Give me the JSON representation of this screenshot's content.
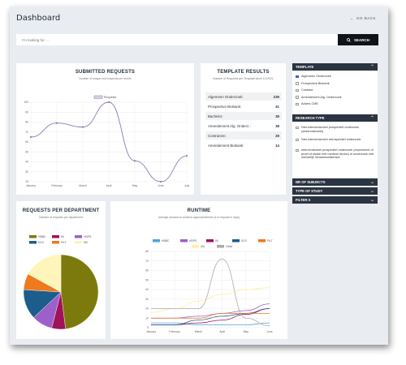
{
  "header": {
    "title": "Dashboard",
    "go_back": "GO BACK"
  },
  "search": {
    "placeholder": "I'm looking for ...",
    "button": "SEARCH"
  },
  "submitted": {
    "title": "SUBMITTED REQUESTS",
    "subtitle": "Number of unique new requests per month",
    "chart_data": {
      "type": "line",
      "categories": [
        "January",
        "February",
        "March",
        "April",
        "May",
        "June",
        "July"
      ],
      "series": [
        {
          "name": "Requests",
          "values": [
            65,
            79,
            75,
            100,
            41,
            20,
            46
          ]
        }
      ],
      "ylim": [
        20,
        100
      ],
      "yticks": [
        20,
        30,
        40,
        50,
        60,
        70,
        80,
        90,
        100
      ],
      "legend": "top",
      "colors": [
        "#8e79b4"
      ]
    }
  },
  "template_results": {
    "title": "TEMPLATE RESULTS",
    "subtitle": "Number of Requests per Template since 1/1/2021",
    "rows": [
      {
        "label": "Algemeen Onderzoek:",
        "value": "239"
      },
      {
        "label": "Prospective Biobank:",
        "value": "41"
      },
      {
        "label": "Bachelor:",
        "value": "39"
      },
      {
        "label": "Amendement Alg. Onderz.:",
        "value": "38"
      },
      {
        "label": "Contracten:",
        "value": "29"
      },
      {
        "label": "Amendement Biobank:",
        "value": "14"
      }
    ]
  },
  "department": {
    "title": "REQUESTS PER DEPARTMENT",
    "subtitle": "Number of requests per department",
    "chart_data": {
      "type": "pie",
      "categories": [
        "HBBC",
        "IIII",
        "HDPS",
        "DCV",
        "FILT",
        "IIIII"
      ],
      "values": [
        48,
        6,
        9,
        13,
        7,
        17
      ],
      "colors": [
        "#7c7a0c",
        "#a0125a",
        "#9d5fc9",
        "#1c5d8c",
        "#ed7a1c",
        "#fdf5b9"
      ],
      "legend": "top"
    }
  },
  "runtime": {
    "title": "RUNTIME",
    "subtitle": "Average duration to achieve approval/decline (# of request in days)",
    "chart_data": {
      "type": "line",
      "categories": [
        "January",
        "February",
        "March",
        "April",
        "May",
        "June"
      ],
      "ylim": [
        0,
        80
      ],
      "yticks": [
        0,
        10,
        20,
        30,
        40,
        50,
        60,
        70,
        80
      ],
      "legend": "top",
      "series": [
        {
          "name": "HBBC",
          "color": "#4fa3d9",
          "values": [
            5,
            5,
            3,
            3,
            3,
            5
          ]
        },
        {
          "name": "HDPS",
          "color": "#9d5fc9",
          "values": [
            10,
            10,
            12,
            15,
            18,
            25
          ]
        },
        {
          "name": "IIII",
          "color": "#a0125a",
          "values": [
            3,
            3,
            5,
            8,
            14,
            20
          ]
        },
        {
          "name": "DCV",
          "color": "#1c5d8c",
          "values": [
            3,
            3,
            8,
            12,
            15,
            20
          ]
        },
        {
          "name": "FILT",
          "color": "#ed7a1c",
          "values": [
            10,
            10,
            10,
            15,
            15,
            15
          ]
        },
        {
          "name": "IIIII",
          "color": "#fdf0a0",
          "values": [
            16,
            20,
            28,
            35,
            40,
            42
          ]
        },
        {
          "name": "Other",
          "color": "#aaaaaa",
          "values": [
            20,
            20,
            20,
            72,
            10,
            2
          ]
        }
      ]
    }
  },
  "sidebar": {
    "template": {
      "title": "TEMPLATE",
      "options": [
        {
          "label": "Algemeen Onderzoek",
          "checked": true
        },
        {
          "label": "Prospective Biobank",
          "checked": false
        },
        {
          "label": "Contract",
          "checked": false
        },
        {
          "label": "Amendement Alg. Onderzoek",
          "checked": false
        },
        {
          "label": "Advies CME",
          "checked": false
        }
      ]
    },
    "research_type": {
      "title": "RESEARCH TYPE",
      "options": [
        {
          "label": "Niet-interventioneel prospectief onderzoek (observationeel)"
        },
        {
          "label": "Niet-interventioneel retrospectief onderzoek"
        },
        {
          "label": "Interventioneel prospectief onderzoek (experiment of proef of studie met medical device) of onderzoek met menselijk lichaamsmateriaal"
        }
      ]
    },
    "nr_subjects": {
      "title": "NR OF SUBJECTS"
    },
    "type_of_study": {
      "title": "TYPE OF STUDY"
    },
    "filter_x": {
      "title": "FILTER X"
    }
  }
}
